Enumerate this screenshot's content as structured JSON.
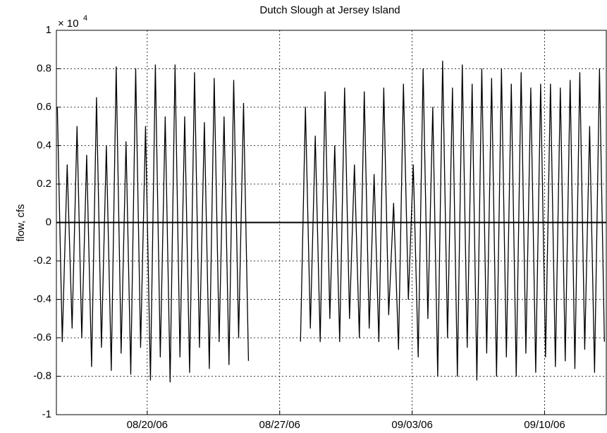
{
  "chart_data": {
    "type": "line",
    "title": "Dutch Slough at Jersey Island",
    "ylabel": "flow, cfs",
    "y_scale_label": "× 10",
    "y_scale_exponent": "4",
    "xlim": [
      -4.8,
      24.26
    ],
    "xticks": [
      {
        "value": 0,
        "label": "08/20/06"
      },
      {
        "value": 7,
        "label": "08/27/06"
      },
      {
        "value": 14,
        "label": "09/03/06"
      },
      {
        "value": 21,
        "label": "09/10/06"
      }
    ],
    "ylim": [
      -1,
      1
    ],
    "yticks": [
      -1,
      -0.8,
      -0.6,
      -0.4,
      -0.2,
      0,
      0.2,
      0.4,
      0.6,
      0.8,
      1
    ],
    "grid": true,
    "zero_line": 0,
    "series": [
      {
        "color": "#000000",
        "x": [
          -4.75,
          -4.49,
          -4.23,
          -3.97,
          -3.71,
          -3.46,
          -3.2,
          -2.94,
          -2.68,
          -2.42,
          -2.16,
          -1.9,
          -1.64,
          -1.38,
          -1.12,
          -0.87,
          -0.61,
          -0.35,
          -0.09,
          0.17,
          0.43,
          0.69,
          0.95,
          1.21,
          1.47,
          1.73,
          1.98,
          2.24,
          2.5,
          2.76,
          3.02,
          3.28,
          3.54,
          3.8,
          4.06,
          4.32,
          4.57,
          4.83,
          5.09,
          5.35,
          6.7,
          8.1,
          8.36,
          8.62,
          8.88,
          9.14,
          9.4,
          9.65,
          9.91,
          10.17,
          10.43,
          10.69,
          10.95,
          11.21,
          11.47,
          11.73,
          11.99,
          12.24,
          12.5,
          12.76,
          13.02,
          13.28,
          13.54,
          13.8,
          14.06,
          14.32,
          14.58,
          14.83,
          15.09,
          15.35,
          15.61,
          15.87,
          16.13,
          16.39,
          16.65,
          16.91,
          17.17,
          17.42,
          17.68,
          17.94,
          18.2,
          18.46,
          18.72,
          18.98,
          19.24,
          19.5,
          19.76,
          20.01,
          20.27,
          20.53,
          20.79,
          21.05,
          21.31,
          21.57,
          21.83,
          22.09,
          22.35,
          22.6,
          22.86,
          23.12,
          23.38,
          23.64,
          23.9,
          24.16
        ],
        "values": [
          0.6,
          -0.62,
          0.3,
          -0.55,
          0.5,
          -0.6,
          0.35,
          -0.75,
          0.65,
          -0.65,
          0.4,
          -0.77,
          0.81,
          -0.68,
          0.42,
          -0.79,
          0.8,
          -0.65,
          0.5,
          -0.82,
          0.82,
          -0.7,
          0.55,
          -0.83,
          0.82,
          -0.7,
          0.55,
          -0.78,
          0.78,
          -0.65,
          0.52,
          -0.76,
          0.75,
          -0.62,
          0.55,
          -0.74,
          0.74,
          -0.6,
          0.62,
          -0.72,
          null,
          -0.62,
          0.6,
          -0.55,
          0.45,
          -0.62,
          0.68,
          -0.5,
          0.4,
          -0.62,
          0.7,
          -0.5,
          0.3,
          -0.6,
          0.68,
          -0.55,
          0.25,
          -0.62,
          0.7,
          -0.48,
          0.1,
          -0.66,
          0.72,
          -0.4,
          0.3,
          -0.7,
          0.8,
          -0.5,
          0.6,
          -0.8,
          0.84,
          -0.6,
          0.7,
          -0.8,
          0.82,
          -0.65,
          0.72,
          -0.82,
          0.8,
          -0.68,
          0.75,
          -0.8,
          0.8,
          -0.7,
          0.72,
          -0.8,
          0.78,
          -0.68,
          0.7,
          -0.78,
          0.72,
          -0.7,
          0.72,
          -0.75,
          0.7,
          -0.72,
          0.74,
          -0.76,
          0.78,
          -0.66,
          0.5,
          -0.78,
          0.8,
          -0.62
        ]
      }
    ]
  }
}
